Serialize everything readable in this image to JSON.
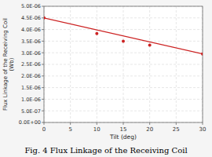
{
  "chart_data": {
    "type": "line",
    "title": "Fig. 4 Flux Linkage of the Receiving Coil",
    "xlabel": "Tilt (deg)",
    "ylabel": "Flux Linkage of the Receiving Coil\n(Wb)",
    "xlim": [
      0,
      30
    ],
    "ylim": [
      0,
      5e-06
    ],
    "xticks": [
      0,
      5,
      10,
      15,
      20,
      25,
      30
    ],
    "yticks": [
      {
        "value": 0.0,
        "label": "0.0E+00"
      },
      {
        "value": 5e-07,
        "label": "5.0E-07"
      },
      {
        "value": 1e-06,
        "label": "1.0E-06"
      },
      {
        "value": 1.5e-06,
        "label": "1.5E-06"
      },
      {
        "value": 2e-06,
        "label": "2.0E-06"
      },
      {
        "value": 2.5e-06,
        "label": "2.5E-06"
      },
      {
        "value": 3e-06,
        "label": "3.0E-06"
      },
      {
        "value": 3.5e-06,
        "label": "3.5E-06"
      },
      {
        "value": 4e-06,
        "label": "4.0E-06"
      },
      {
        "value": 4.5e-06,
        "label": "4.5E-06"
      },
      {
        "value": 5e-06,
        "label": "5.0E-06"
      }
    ],
    "grid": true,
    "series": [
      {
        "type": "line",
        "color": "#cc2222",
        "x": [
          0,
          30
        ],
        "values": [
          4.5e-06,
          2.95e-06
        ]
      },
      {
        "type": "scatter",
        "color": "#cc2222",
        "marker": "circle",
        "x": [
          0,
          10,
          15,
          20,
          30
        ],
        "values": [
          4.5e-06,
          3.83e-06,
          3.5e-06,
          3.33e-06,
          2.95e-06
        ]
      }
    ]
  }
}
